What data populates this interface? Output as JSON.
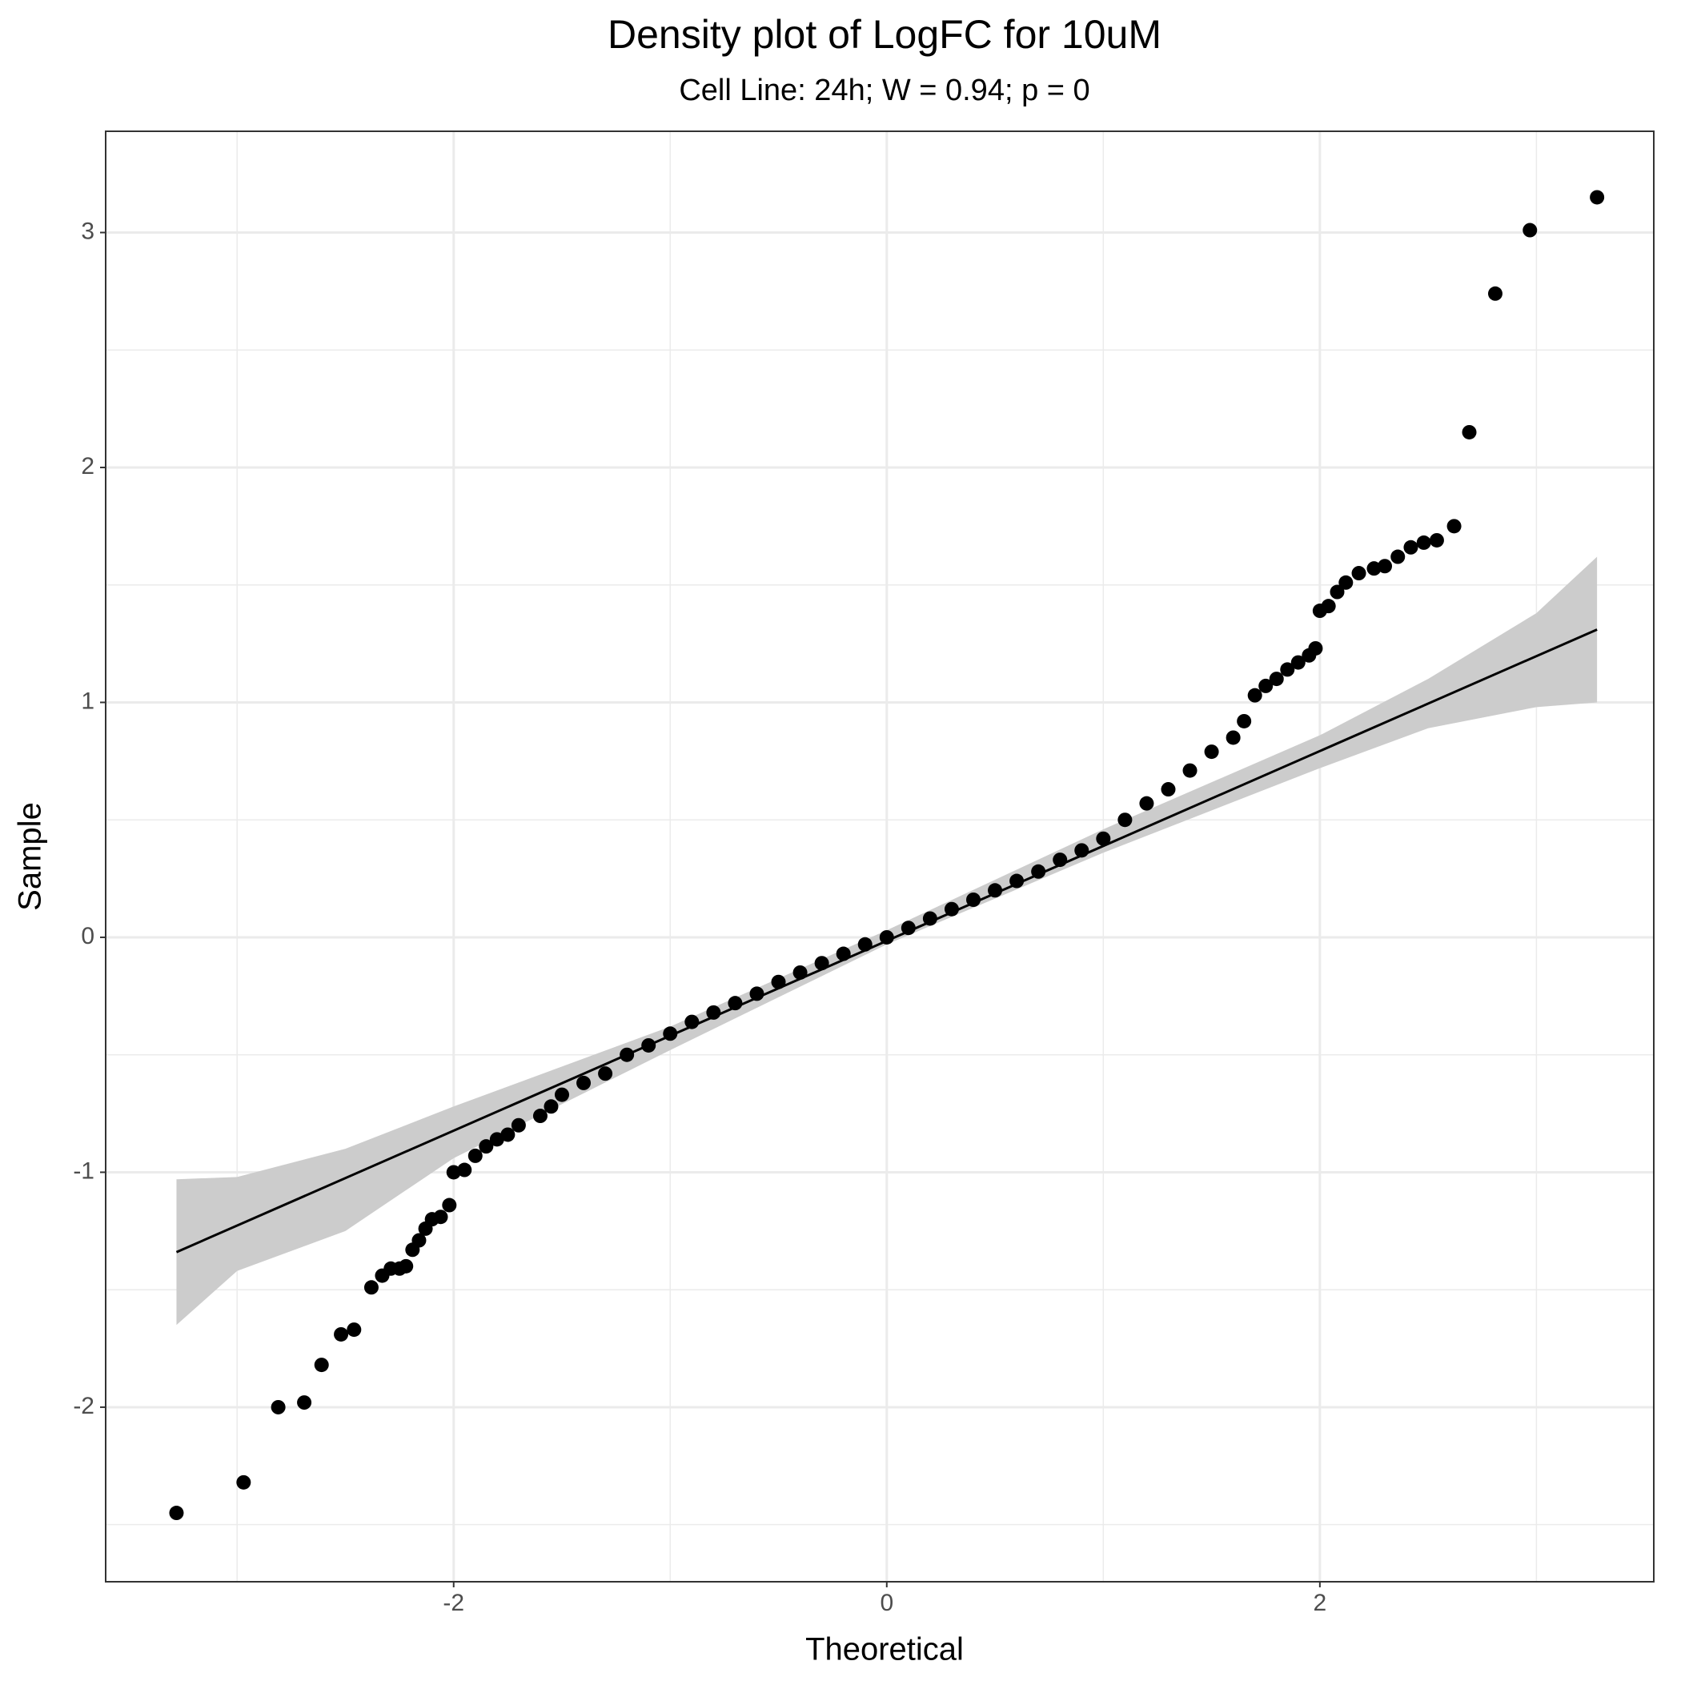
{
  "chart_data": {
    "type": "scatter",
    "title": "Density plot of LogFC for 10uM",
    "subtitle": "Cell Line: 24h; W = 0.94; p = 0",
    "x_label": "Theoretical",
    "y_label": "Sample",
    "color": "#000000",
    "x": [
      -3.28,
      -2.97,
      -2.81,
      -2.69,
      -2.61,
      -2.52,
      -2.46,
      -2.38,
      -2.33,
      -2.29,
      -2.25,
      -2.22,
      -2.19,
      -2.16,
      -2.13,
      -2.1,
      -2.06,
      -2.02,
      -2.0,
      -1.95,
      -1.9,
      -1.85,
      -1.8,
      -1.75,
      -1.7,
      -1.6,
      -1.55,
      -1.5,
      -1.4,
      -1.3,
      -1.2,
      -1.1,
      -1.0,
      -0.9,
      -0.8,
      -0.7,
      -0.6,
      -0.5,
      -0.4,
      -0.3,
      -0.2,
      -0.1,
      0,
      0.1,
      0.2,
      0.3,
      0.4,
      0.5,
      0.6,
      0.7,
      0.8,
      0.9,
      1.0,
      1.1,
      1.2,
      1.3,
      1.4,
      1.5,
      1.6,
      1.65,
      1.7,
      1.75,
      1.8,
      1.85,
      1.9,
      1.95,
      1.98,
      2.0,
      2.04,
      2.08,
      2.12,
      2.18,
      2.25,
      2.3,
      2.36,
      2.42,
      2.48,
      2.54,
      2.62,
      2.69,
      2.81,
      2.97,
      3.28
    ],
    "values": [
      -2.45,
      -2.32,
      -2.0,
      -1.98,
      -1.82,
      -1.69,
      -1.67,
      -1.49,
      -1.44,
      -1.41,
      -1.41,
      -1.4,
      -1.33,
      -1.29,
      -1.24,
      -1.2,
      -1.19,
      -1.14,
      -1.0,
      -0.99,
      -0.93,
      -0.89,
      -0.86,
      -0.84,
      -0.8,
      -0.76,
      -0.72,
      -0.67,
      -0.62,
      -0.58,
      -0.5,
      -0.46,
      -0.41,
      -0.36,
      -0.32,
      -0.28,
      -0.24,
      -0.19,
      -0.15,
      -0.11,
      -0.07,
      -0.03,
      0,
      0.04,
      0.08,
      0.12,
      0.16,
      0.2,
      0.24,
      0.28,
      0.33,
      0.37,
      0.42,
      0.5,
      0.57,
      0.63,
      0.71,
      0.79,
      0.85,
      0.92,
      1.03,
      1.07,
      1.1,
      1.14,
      1.17,
      1.2,
      1.23,
      1.39,
      1.41,
      1.47,
      1.51,
      1.55,
      1.57,
      1.58,
      1.62,
      1.66,
      1.68,
      1.69,
      1.75,
      2.15,
      2.74,
      3.01,
      3.15
    ],
    "line": {
      "color": "#000000",
      "x": [
        -3.28,
        3.28
      ],
      "values": [
        -1.34,
        1.31
      ]
    },
    "band": {
      "color": "#cccccc",
      "x": [
        -3.28,
        -3.0,
        -2.5,
        -2.0,
        -1.0,
        0,
        1.0,
        2.0,
        2.5,
        3.0,
        3.28
      ],
      "upper": [
        -1.03,
        -1.02,
        -0.9,
        -0.72,
        -0.38,
        0.03,
        0.46,
        0.86,
        1.1,
        1.38,
        1.62
      ],
      "lower": [
        -1.65,
        -1.42,
        -1.25,
        -0.94,
        -0.48,
        -0.03,
        0.36,
        0.72,
        0.89,
        0.98,
        1.0
      ]
    },
    "xlim": [
      -3.607,
      3.542
    ],
    "ylim": [
      -2.743,
      3.431
    ],
    "xticks": [
      -2,
      0,
      2
    ],
    "yticks": [
      -2,
      -1,
      0,
      1,
      2,
      3
    ],
    "xminor": [
      -3,
      -1,
      1,
      3
    ],
    "yminor": [
      -2.5,
      -1.5,
      -0.5,
      0.5,
      1.5,
      2.5
    ],
    "grid": true
  }
}
